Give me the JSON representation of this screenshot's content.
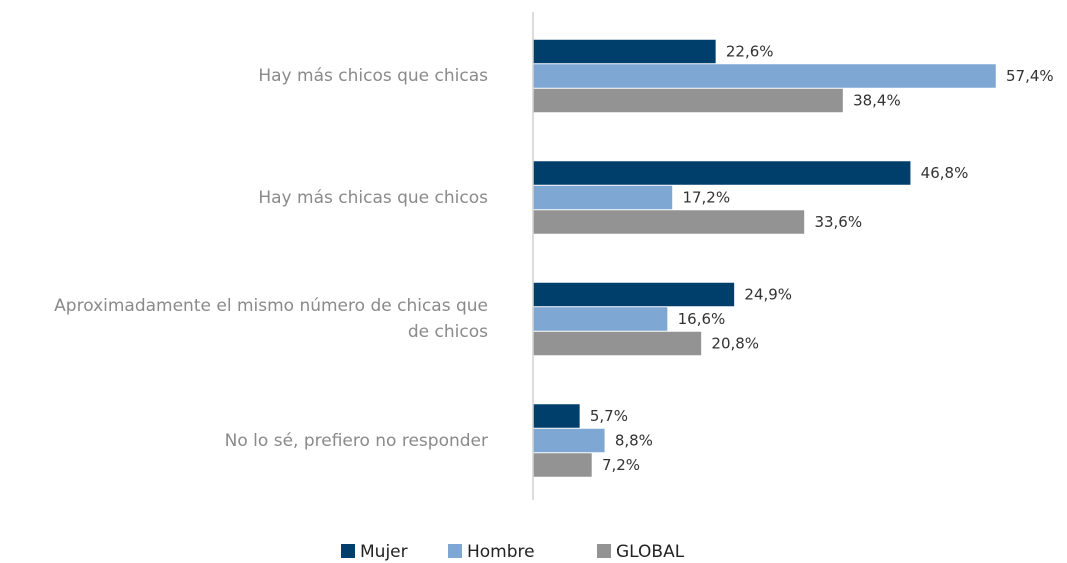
{
  "chart_data": {
    "type": "barh",
    "categories": [
      "Hay más chicos que chicas",
      "Hay más chicas que chicos",
      "Aproximadamente el mismo número de chicas que de chicos",
      "No lo sé, prefiero no responder"
    ],
    "series": [
      {
        "name": "Mujer",
        "color": "#003f6b",
        "values": [
          22.6,
          46.8,
          24.9,
          5.7
        ],
        "value_labels": [
          "22,6%",
          "46,8%",
          "24,9%",
          "5,7%"
        ]
      },
      {
        "name": "Hombre",
        "color": "#7fa7d4",
        "values": [
          57.4,
          17.2,
          16.6,
          8.8
        ],
        "value_labels": [
          "57,4%",
          "17,2%",
          "16,6%",
          "8,8%"
        ]
      },
      {
        "name": "GLOBAL",
        "color": "#939393",
        "values": [
          38.4,
          33.6,
          20.8,
          7.2
        ],
        "value_labels": [
          "38,4%",
          "33,6%",
          "20,8%",
          "7,2%"
        ]
      }
    ],
    "legend": "bottom"
  }
}
